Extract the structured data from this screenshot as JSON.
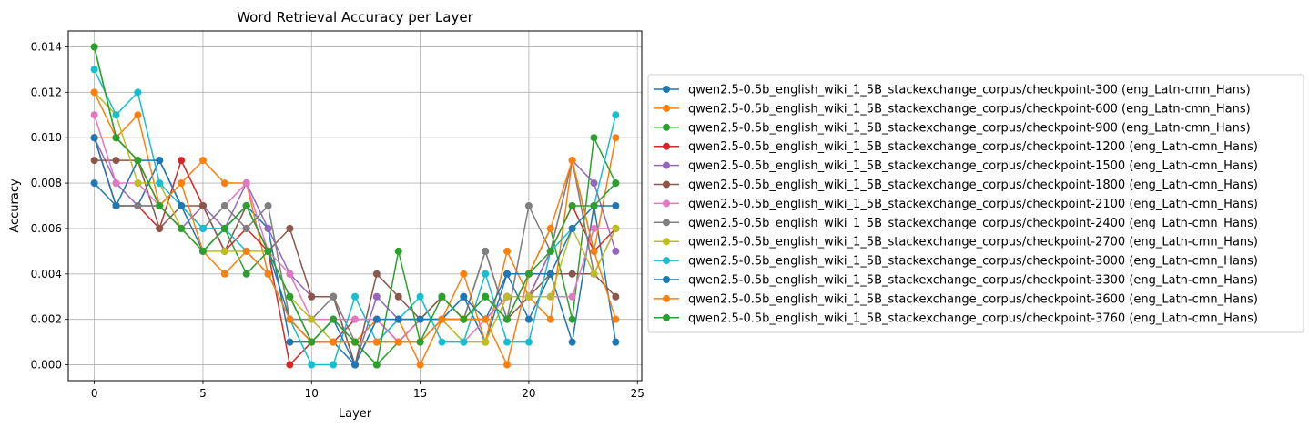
{
  "chart_data": {
    "type": "line",
    "title": "Word Retrieval Accuracy per Layer",
    "xlabel": "Layer",
    "ylabel": "Accuracy",
    "xlim": [
      -1.2,
      25.2
    ],
    "ylim": [
      -0.0007,
      0.0147
    ],
    "xticks": [
      0,
      5,
      10,
      15,
      20,
      25
    ],
    "yticks": [
      0.0,
      0.002,
      0.004,
      0.006,
      0.008,
      0.01,
      0.012,
      0.014
    ],
    "ytick_labels": [
      "0.000",
      "0.002",
      "0.004",
      "0.006",
      "0.008",
      "0.010",
      "0.012",
      "0.014"
    ],
    "grid": true,
    "legend_position": "outside-right",
    "x": [
      0,
      1,
      2,
      3,
      4,
      5,
      6,
      7,
      8,
      9,
      10,
      11,
      12,
      13,
      14,
      15,
      16,
      17,
      18,
      19,
      20,
      21,
      22,
      23,
      24
    ],
    "series": [
      {
        "name": "qwen2.5-0.5b_english_wiki_1_5B_stackexchange_corpus/checkpoint-300 (eng_Latn-cmn_Hans)",
        "color": "#1f77b4",
        "values": [
          0.008,
          0.007,
          0.007,
          0.009,
          0.007,
          0.006,
          0.006,
          0.007,
          0.006,
          0.001,
          0.001,
          0.001,
          0.0,
          0.002,
          0.001,
          0.001,
          0.002,
          0.003,
          0.001,
          0.004,
          0.002,
          0.004,
          0.001,
          0.007,
          0.001
        ]
      },
      {
        "name": "qwen2.5-0.5b_english_wiki_1_5B_stackexchange_corpus/checkpoint-600 (eng_Latn-cmn_Hans)",
        "color": "#ff7f0e",
        "values": [
          0.01,
          0.01,
          0.011,
          0.007,
          0.008,
          0.009,
          0.008,
          0.008,
          0.004,
          0.002,
          0.001,
          0.001,
          0.001,
          0.002,
          0.002,
          0.0,
          0.002,
          0.004,
          0.001,
          0.005,
          0.003,
          0.002,
          0.009,
          0.005,
          0.01
        ]
      },
      {
        "name": "qwen2.5-0.5b_english_wiki_1_5B_stackexchange_corpus/checkpoint-900 (eng_Latn-cmn_Hans)",
        "color": "#2ca02c",
        "values": [
          0.014,
          0.01,
          0.009,
          0.007,
          0.006,
          0.005,
          0.006,
          0.004,
          0.005,
          0.003,
          0.001,
          0.002,
          0.001,
          0.0,
          0.001,
          0.002,
          0.003,
          0.002,
          0.003,
          0.002,
          0.004,
          0.006,
          0.002,
          0.01,
          0.008
        ]
      },
      {
        "name": "qwen2.5-0.5b_english_wiki_1_5B_stackexchange_corpus/checkpoint-1200 (eng_Latn-cmn_Hans)",
        "color": "#d62728",
        "values": [
          0.01,
          0.007,
          0.007,
          0.006,
          0.009,
          0.007,
          0.005,
          0.006,
          0.005,
          0.0,
          0.001,
          0.001,
          0.002,
          0.002,
          0.001,
          0.002,
          0.002,
          0.002,
          0.002,
          0.003,
          0.003,
          0.005,
          0.007,
          0.005,
          0.006
        ]
      },
      {
        "name": "qwen2.5-0.5b_english_wiki_1_5B_stackexchange_corpus/checkpoint-1500 (eng_Latn-cmn_Hans)",
        "color": "#9467bd",
        "values": [
          0.01,
          0.008,
          0.007,
          0.007,
          0.006,
          0.007,
          0.006,
          0.008,
          0.006,
          0.004,
          0.003,
          0.003,
          0.0,
          0.003,
          0.002,
          0.002,
          0.002,
          0.002,
          0.002,
          0.003,
          0.003,
          0.005,
          0.009,
          0.008,
          0.005
        ]
      },
      {
        "name": "qwen2.5-0.5b_english_wiki_1_5B_stackexchange_corpus/checkpoint-1800 (eng_Latn-cmn_Hans)",
        "color": "#8c564b",
        "values": [
          0.009,
          0.009,
          0.009,
          0.006,
          0.007,
          0.007,
          0.005,
          0.007,
          0.005,
          0.006,
          0.003,
          0.003,
          0.0,
          0.004,
          0.003,
          0.002,
          0.003,
          0.002,
          0.005,
          0.002,
          0.003,
          0.004,
          0.004,
          0.004,
          0.003
        ]
      },
      {
        "name": "qwen2.5-0.5b_english_wiki_1_5B_stackexchange_corpus/checkpoint-2100 (eng_Latn-cmn_Hans)",
        "color": "#e377c2",
        "values": [
          0.011,
          0.008,
          0.008,
          0.007,
          0.006,
          0.006,
          0.007,
          0.008,
          0.005,
          0.004,
          0.002,
          0.002,
          0.002,
          0.002,
          0.001,
          0.002,
          0.002,
          0.001,
          0.002,
          0.003,
          0.003,
          0.003,
          0.003,
          0.006,
          0.006
        ]
      },
      {
        "name": "qwen2.5-0.5b_english_wiki_1_5B_stackexchange_corpus/checkpoint-2400 (eng_Latn-cmn_Hans)",
        "color": "#7f7f7f",
        "values": [
          0.01,
          0.007,
          0.007,
          0.007,
          0.006,
          0.006,
          0.007,
          0.006,
          0.007,
          0.002,
          0.002,
          0.003,
          0.001,
          0.001,
          0.002,
          0.002,
          0.002,
          0.002,
          0.005,
          0.002,
          0.007,
          0.005,
          0.009,
          0.004,
          0.006
        ]
      },
      {
        "name": "qwen2.5-0.5b_english_wiki_1_5B_stackexchange_corpus/checkpoint-2700 (eng_Latn-cmn_Hans)",
        "color": "#bcbd22",
        "values": [
          0.012,
          0.011,
          0.008,
          0.008,
          0.006,
          0.005,
          0.005,
          0.005,
          0.005,
          0.003,
          0.002,
          0.001,
          0.001,
          0.001,
          0.001,
          0.001,
          0.002,
          0.001,
          0.001,
          0.003,
          0.003,
          0.003,
          0.006,
          0.004,
          0.006
        ]
      },
      {
        "name": "qwen2.5-0.5b_english_wiki_1_5B_stackexchange_corpus/checkpoint-3000 (eng_Latn-cmn_Hans)",
        "color": "#17becf",
        "values": [
          0.013,
          0.011,
          0.012,
          0.008,
          0.007,
          0.006,
          0.006,
          0.005,
          0.004,
          0.002,
          0.0,
          0.0,
          0.003,
          0.001,
          0.002,
          0.003,
          0.001,
          0.001,
          0.004,
          0.001,
          0.001,
          0.005,
          0.006,
          0.007,
          0.011
        ]
      },
      {
        "name": "qwen2.5-0.5b_english_wiki_1_5B_stackexchange_corpus/checkpoint-3300 (eng_Latn-cmn_Hans)",
        "color": "#1f77b4",
        "values": [
          0.01,
          0.007,
          0.009,
          0.009,
          0.007,
          0.005,
          0.006,
          0.007,
          0.005,
          0.002,
          0.001,
          0.002,
          0.0,
          0.002,
          0.002,
          0.002,
          0.002,
          0.003,
          0.002,
          0.004,
          0.004,
          0.004,
          0.006,
          0.007,
          0.007
        ]
      },
      {
        "name": "qwen2.5-0.5b_english_wiki_1_5B_stackexchange_corpus/checkpoint-3600 (eng_Latn-cmn_Hans)",
        "color": "#ff7f0e",
        "values": [
          0.012,
          0.01,
          0.009,
          0.007,
          0.008,
          0.005,
          0.004,
          0.005,
          0.004,
          0.002,
          0.001,
          0.001,
          0.001,
          0.001,
          0.001,
          0.001,
          0.002,
          0.002,
          0.002,
          0.0,
          0.004,
          0.006,
          0.009,
          0.005,
          0.002
        ]
      },
      {
        "name": "qwen2.5-0.5b_english_wiki_1_5B_stackexchange_corpus/checkpoint-3760 (eng_Latn-cmn_Hans)",
        "color": "#2ca02c",
        "values": [
          0.014,
          0.01,
          0.009,
          0.007,
          0.006,
          0.005,
          0.006,
          0.007,
          0.005,
          0.003,
          0.001,
          0.002,
          0.001,
          0.0,
          0.005,
          0.001,
          0.003,
          0.002,
          0.003,
          0.002,
          0.004,
          0.005,
          0.007,
          0.007,
          0.008
        ]
      }
    ]
  }
}
